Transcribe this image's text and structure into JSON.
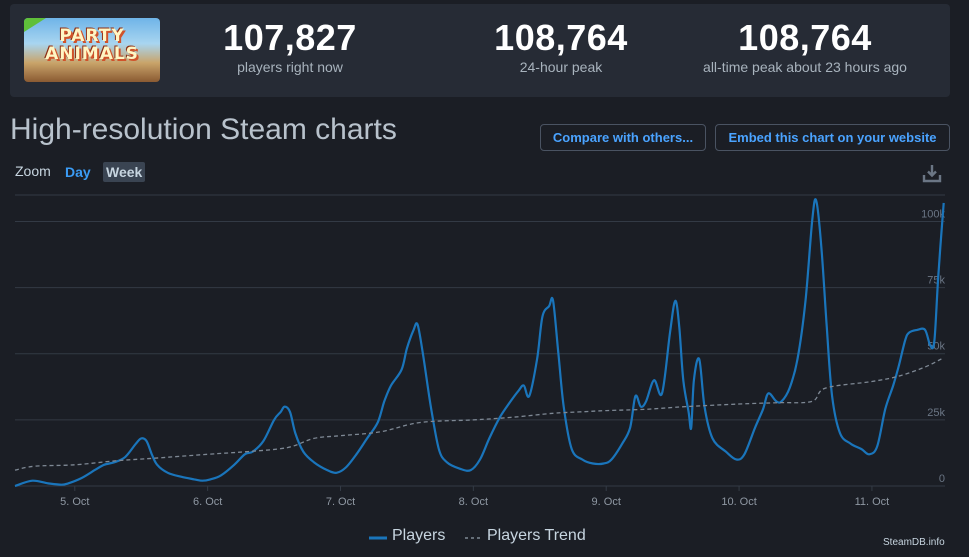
{
  "header": {
    "thumbnail_text": "PARTY ANIMALS",
    "stats": [
      {
        "value": "107,827",
        "label": "players right now"
      },
      {
        "value": "108,764",
        "label": "24-hour peak"
      },
      {
        "value": "108,764",
        "label": "all-time peak about 23 hours ago"
      }
    ]
  },
  "title": "High-resolution Steam charts",
  "buttons": {
    "compare": "Compare with others...",
    "embed": "Embed this chart on your website"
  },
  "zoom": {
    "label": "Zoom",
    "day": "Day",
    "week": "Week",
    "selected": "Week"
  },
  "credit": "SteamDB.info",
  "colors": {
    "players": "#1a75bb",
    "trend": "#7e8894",
    "grid": "#333a45",
    "accent": "#3b9cf5"
  },
  "chart_data": {
    "type": "line",
    "x_tick_labels": [
      "5. Oct",
      "6. Oct",
      "7. Oct",
      "8. Oct",
      "9. Oct",
      "10. Oct",
      "11. Oct"
    ],
    "x_range_days": [
      4.55,
      11.55
    ],
    "y_ticks": [
      0,
      25000,
      50000,
      75000,
      100000
    ],
    "y_tick_labels": [
      "0",
      "25k",
      "50k",
      "75k",
      "100k"
    ],
    "ylim": [
      0,
      110000
    ],
    "legend_position": "bottom-center",
    "series": [
      {
        "name": "Players",
        "style": "solid",
        "x": [
          4.55,
          4.68,
          4.8,
          4.9,
          4.95,
          5.05,
          5.15,
          5.22,
          5.3,
          5.38,
          5.46,
          5.5,
          5.54,
          5.58,
          5.62,
          5.7,
          5.8,
          5.9,
          5.96,
          6.02,
          6.1,
          6.2,
          6.28,
          6.34,
          6.42,
          6.5,
          6.55,
          6.58,
          6.62,
          6.66,
          6.72,
          6.8,
          6.9,
          6.97,
          7.04,
          7.12,
          7.2,
          7.28,
          7.33,
          7.38,
          7.46,
          7.5,
          7.55,
          7.58,
          7.62,
          7.68,
          7.74,
          7.8,
          7.9,
          7.98,
          8.05,
          8.12,
          8.2,
          8.28,
          8.34,
          8.38,
          8.42,
          8.48,
          8.52,
          8.57,
          8.6,
          8.64,
          8.68,
          8.74,
          8.82,
          8.9,
          8.98,
          9.04,
          9.12,
          9.18,
          9.22,
          9.26,
          9.3,
          9.36,
          9.42,
          9.48,
          9.52,
          9.55,
          9.58,
          9.62,
          9.64,
          9.66,
          9.7,
          9.74,
          9.8,
          9.9,
          9.98,
          10.04,
          10.12,
          10.18,
          10.22,
          10.28,
          10.32,
          10.38,
          10.44,
          10.5,
          10.55,
          10.58,
          10.62,
          10.66,
          10.7,
          10.76,
          10.84,
          10.92,
          10.98,
          11.04,
          11.1,
          11.16,
          11.2,
          11.25,
          11.28,
          11.34,
          11.4,
          11.44,
          11.47,
          11.5,
          11.54
        ],
        "y": [
          0,
          2000,
          1000,
          500,
          1000,
          3000,
          6000,
          8000,
          9000,
          11000,
          16000,
          18000,
          17000,
          12000,
          8000,
          5000,
          3500,
          2500,
          2000,
          2500,
          4000,
          8000,
          12000,
          13000,
          17000,
          25000,
          28000,
          30000,
          28000,
          20000,
          13000,
          9000,
          6000,
          5000,
          7000,
          12000,
          18000,
          24000,
          32000,
          38000,
          44000,
          52000,
          59000,
          61000,
          50000,
          30000,
          14000,
          9000,
          6500,
          6000,
          10000,
          18000,
          26000,
          32000,
          36000,
          38000,
          34000,
          48000,
          64000,
          68000,
          70000,
          50000,
          30000,
          14000,
          10000,
          8500,
          8500,
          10000,
          16000,
          22000,
          34000,
          30000,
          32000,
          40000,
          35000,
          58000,
          70000,
          60000,
          40000,
          28000,
          22000,
          40000,
          48000,
          30000,
          18000,
          13000,
          10000,
          12000,
          22000,
          29000,
          35000,
          32000,
          32000,
          37000,
          48000,
          70000,
          100000,
          108000,
          90000,
          60000,
          34000,
          20000,
          16000,
          14000,
          12000,
          15000,
          29000,
          38000,
          45000,
          55000,
          58000,
          59000,
          59000,
          53000,
          55000,
          80000,
          107000
        ]
      },
      {
        "name": "Players Trend",
        "style": "dashed",
        "x": [
          4.55,
          4.7,
          5.0,
          5.3,
          5.6,
          6.0,
          6.3,
          6.6,
          6.8,
          7.0,
          7.3,
          7.6,
          8.0,
          8.3,
          8.6,
          8.8,
          9.0,
          9.3,
          9.6,
          10.0,
          10.3,
          10.55,
          10.65,
          11.0,
          11.2,
          11.4,
          11.54
        ],
        "y": [
          6000,
          7500,
          8000,
          9500,
          10500,
          12000,
          13000,
          14500,
          18000,
          19000,
          20500,
          24000,
          25000,
          26000,
          27500,
          28000,
          28500,
          29000,
          30000,
          31000,
          31500,
          32000,
          37000,
          39500,
          41500,
          45000,
          48500
        ]
      }
    ]
  }
}
